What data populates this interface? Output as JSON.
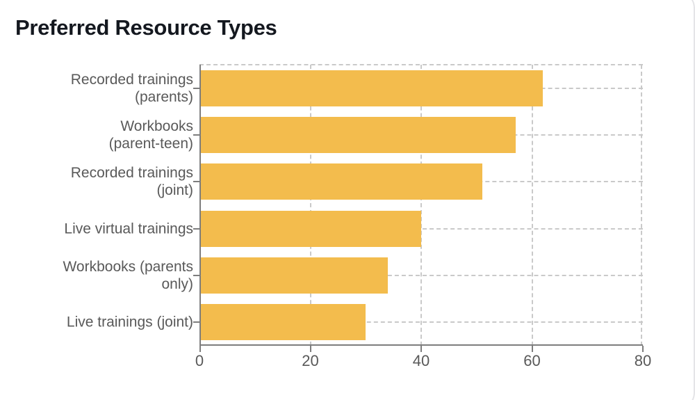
{
  "header": {
    "title": "Preferred Resource Types"
  },
  "chart_data": {
    "type": "bar",
    "orientation": "horizontal",
    "title": "Preferred Resource Types",
    "categories": [
      "Recorded trainings (parents)",
      "Workbooks (parent-teen)",
      "Recorded trainings (joint)",
      "Live virtual trainings",
      "Workbooks (parents only)",
      "Live trainings (joint)"
    ],
    "category_label_lines": [
      [
        "Recorded trainings",
        "(parents)"
      ],
      [
        "Workbooks",
        "(parent-teen)"
      ],
      [
        "Recorded trainings",
        "(joint)"
      ],
      [
        "Live virtual trainings"
      ],
      [
        "Workbooks (parents",
        "only)"
      ],
      [
        "Live trainings (joint)"
      ]
    ],
    "values": [
      62,
      57,
      51,
      40,
      34,
      30
    ],
    "xlim": [
      0,
      80
    ],
    "x_ticks": [
      0,
      20,
      40,
      60,
      80
    ],
    "x_tick_labels": [
      "0",
      "20",
      "40",
      "60",
      "80"
    ],
    "xlabel": "",
    "ylabel": "",
    "grid": {
      "style": "dashed",
      "axes": "both"
    },
    "legend": "none",
    "bar_color": "#f3bc4d"
  },
  "colors": {
    "background": "#ffffff",
    "bar": "#f3bc4d",
    "grid": "#c9c9c9",
    "axis": "#7d7d7d",
    "label": "#595959",
    "title": "#14181f",
    "card_border": "#e4e4e7"
  }
}
